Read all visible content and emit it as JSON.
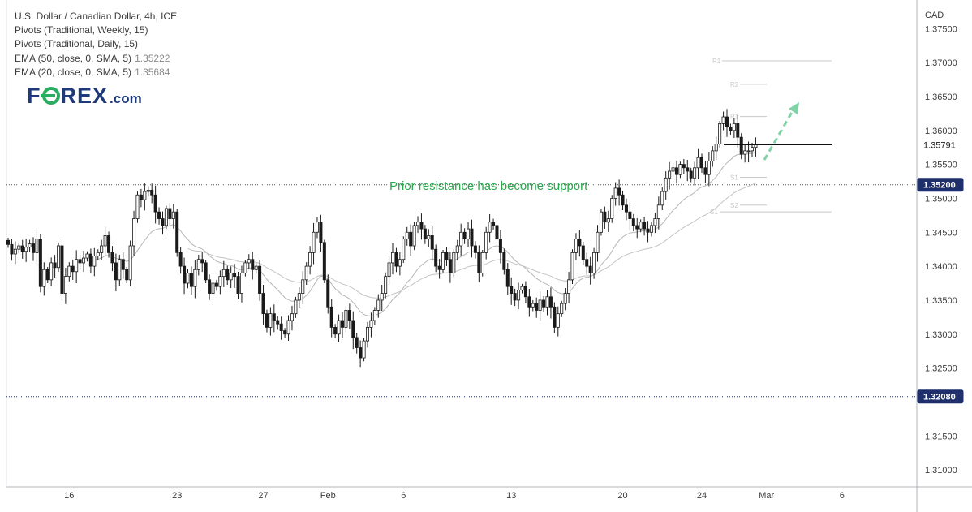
{
  "legend": {
    "line1": "U.S. Dollar / Canadian Dollar, 4h, ICE",
    "line2": "Pivots (Traditional, Weekly, 15)",
    "line3": "Pivots (Traditional, Daily, 15)",
    "line4_label": "EMA (50, close, 0, SMA, 5)",
    "line4_value": "1.35222",
    "line5_label": "EMA (20, close, 0, SMA, 5)",
    "line5_value": "1.35684"
  },
  "logo": {
    "pre": "F",
    "post": "REX",
    "dotcom": ".com",
    "color": "#1f3a7a",
    "accent": "#27ae60"
  },
  "annotation": "Prior resistance has become support",
  "chart_data": {
    "type": "candlestick",
    "currency_label": "CAD",
    "y_ticks": [
      "1.37500",
      "1.37000",
      "1.36500",
      "1.36000",
      "1.35500",
      "1.35000",
      "1.34500",
      "1.34000",
      "1.33500",
      "1.33000",
      "1.32500",
      "1.31500",
      "1.31000"
    ],
    "ylim": [
      1.3075,
      1.3785
    ],
    "x_ticks": [
      {
        "label": "16",
        "slot": 17
      },
      {
        "label": "23",
        "slot": 47
      },
      {
        "label": "27",
        "slot": 71
      },
      {
        "label": "Feb",
        "slot": 89
      },
      {
        "label": "6",
        "slot": 110
      },
      {
        "label": "13",
        "slot": 140
      },
      {
        "label": "20",
        "slot": 171
      },
      {
        "label": "24",
        "slot": 193
      },
      {
        "label": "Mar",
        "slot": 211
      },
      {
        "label": "6",
        "slot": 232
      }
    ],
    "price_labels": [
      {
        "text": "1.35791",
        "value": 1.35791,
        "style": "white"
      },
      {
        "text": "1.35200",
        "value": 1.352,
        "style": "navy"
      },
      {
        "text": "1.32080",
        "value": 1.3208,
        "style": "navy"
      }
    ],
    "horizontal_levels": [
      {
        "value": 1.352,
        "style": "dotted-dark"
      },
      {
        "value": 1.3208,
        "style": "dotted-navy"
      }
    ],
    "pivot_labels": [
      {
        "label": "R1",
        "value": 1.37025
      },
      {
        "label": "R2",
        "value": 1.3668
      },
      {
        "label": "R1",
        "value": 1.36205
      },
      {
        "label": "S1",
        "value": 1.3531
      },
      {
        "label": "S2",
        "value": 1.349
      },
      {
        "label": "S1",
        "value": 1.348
      }
    ],
    "support_line": 1.35791,
    "closes": [
      1.3432,
      1.3418,
      1.3425,
      1.343,
      1.3422,
      1.3428,
      1.3433,
      1.342,
      1.344,
      1.337,
      1.3395,
      1.338,
      1.3405,
      1.3398,
      1.343,
      1.336,
      1.3385,
      1.34,
      1.3392,
      1.341,
      1.3405,
      1.3412,
      1.3418,
      1.34,
      1.3415,
      1.342,
      1.343,
      1.3445,
      1.342,
      1.3405,
      1.338,
      1.341,
      1.3395,
      1.338,
      1.343,
      1.347,
      1.3505,
      1.3498,
      1.351,
      1.3512,
      1.3505,
      1.348,
      1.347,
      1.346,
      1.3485,
      1.347,
      1.348,
      1.342,
      1.34,
      1.3375,
      1.339,
      1.337,
      1.3395,
      1.341,
      1.3405,
      1.338,
      1.336,
      1.3375,
      1.337,
      1.3385,
      1.3395,
      1.338,
      1.339,
      1.3385,
      1.336,
      1.339,
      1.3405,
      1.341,
      1.3395,
      1.34,
      1.336,
      1.333,
      1.331,
      1.333,
      1.332,
      1.3315,
      1.3305,
      1.33,
      1.332,
      1.333,
      1.335,
      1.336,
      1.338,
      1.34,
      1.342,
      1.345,
      1.3465,
      1.3435,
      1.338,
      1.334,
      1.331,
      1.33,
      1.332,
      1.331,
      1.3335,
      1.332,
      1.3295,
      1.328,
      1.3265,
      1.329,
      1.331,
      1.332,
      1.3335,
      1.335,
      1.336,
      1.3385,
      1.3405,
      1.342,
      1.34,
      1.341,
      1.344,
      1.345,
      1.343,
      1.346,
      1.3465,
      1.3455,
      1.344,
      1.3445,
      1.3425,
      1.34,
      1.3395,
      1.342,
      1.341,
      1.339,
      1.342,
      1.343,
      1.345,
      1.344,
      1.3455,
      1.343,
      1.342,
      1.339,
      1.342,
      1.345,
      1.3465,
      1.346,
      1.344,
      1.342,
      1.3395,
      1.337,
      1.336,
      1.335,
      1.3365,
      1.337,
      1.3355,
      1.334,
      1.3345,
      1.3335,
      1.335,
      1.334,
      1.3355,
      1.334,
      1.331,
      1.333,
      1.3345,
      1.336,
      1.338,
      1.342,
      1.344,
      1.343,
      1.341,
      1.34,
      1.339,
      1.342,
      1.345,
      1.348,
      1.3465,
      1.347,
      1.35,
      1.3515,
      1.3505,
      1.349,
      1.348,
      1.347,
      1.346,
      1.3455,
      1.3465,
      1.3455,
      1.345,
      1.346,
      1.347,
      1.349,
      1.351,
      1.353,
      1.354,
      1.3545,
      1.3535,
      1.355,
      1.3545,
      1.354,
      1.353,
      1.3545,
      1.356,
      1.3545,
      1.3535,
      1.3555,
      1.357,
      1.358,
      1.361,
      1.362,
      1.3605,
      1.36,
      1.361,
      1.359,
      1.3565,
      1.357,
      1.357,
      1.3575,
      1.35791
    ],
    "ema20_values": "20-period EMA of closes",
    "ema50_values": "50-period EMA of closes"
  }
}
